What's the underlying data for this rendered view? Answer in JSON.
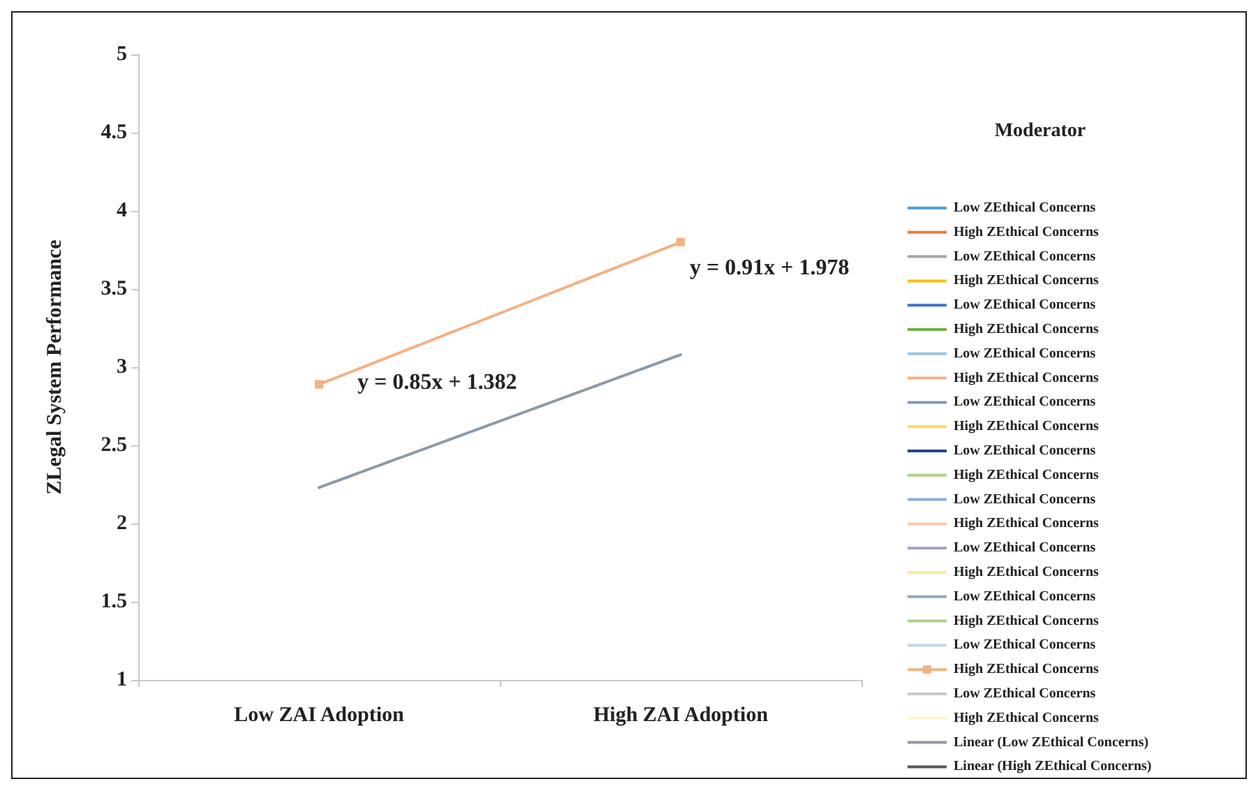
{
  "chart_data": {
    "type": "line",
    "ylabel": "ZLegal System Performance",
    "legend_title": "Moderator",
    "legend": "right",
    "grid": false,
    "categories": [
      "Low ZAI Adoption",
      "High ZAI Adoption"
    ],
    "ylim": [
      1,
      5
    ],
    "yticks": [
      1,
      1.5,
      2,
      2.5,
      3,
      3.5,
      4,
      4.5,
      5
    ],
    "annotations": [
      "y = 0.85x + 1.382",
      "y = 0.91x + 1.978"
    ],
    "series": [
      {
        "name": "Low ZEthical Concerns",
        "color": "#5b9bd5",
        "values": [
          null,
          null
        ]
      },
      {
        "name": "High ZEthical Concerns",
        "color": "#ed7d31",
        "values": [
          null,
          null
        ]
      },
      {
        "name": "Low ZEthical Concerns",
        "color": "#a5a5a5",
        "values": [
          null,
          null
        ]
      },
      {
        "name": "High ZEthical Concerns",
        "color": "#ffc000",
        "values": [
          null,
          null
        ]
      },
      {
        "name": "Low ZEthical Concerns",
        "color": "#4472c4",
        "values": [
          null,
          null
        ]
      },
      {
        "name": "High ZEthical Concerns",
        "color": "#70ad47",
        "values": [
          null,
          null
        ]
      },
      {
        "name": "Low ZEthical Concerns",
        "color": "#9dc3e6",
        "values": [
          null,
          null
        ]
      },
      {
        "name": "High ZEthical Concerns",
        "color": "#f4b183",
        "values": [
          null,
          null
        ]
      },
      {
        "name": "Low ZEthical Concerns",
        "color": "#8497b0",
        "values": [
          null,
          null
        ]
      },
      {
        "name": "High ZEthical Concerns",
        "color": "#ffd966",
        "values": [
          null,
          null
        ]
      },
      {
        "name": "Low ZEthical Concerns",
        "color": "#264478",
        "values": [
          null,
          null
        ]
      },
      {
        "name": "High ZEthical Concerns",
        "color": "#a9d18e",
        "values": [
          null,
          null
        ]
      },
      {
        "name": "Low ZEthical Concerns",
        "color": "#8faadc",
        "values": [
          null,
          null
        ]
      },
      {
        "name": "High ZEthical Concerns",
        "color": "#f8cbad",
        "values": [
          null,
          null
        ]
      },
      {
        "name": "Low ZEthical Concerns",
        "color": "#a99bc5",
        "values": [
          null,
          null
        ]
      },
      {
        "name": "High ZEthical Concerns",
        "color": "#ffe699",
        "values": [
          null,
          null
        ]
      },
      {
        "name": "Low ZEthical Concerns",
        "color": "#8ea9c1",
        "values": [
          null,
          null
        ]
      },
      {
        "name": "High ZEthical Concerns",
        "color": "#a8d08d",
        "values": [
          null,
          null
        ]
      },
      {
        "name": "Low ZEthical Concerns",
        "color": "#bdd7ee",
        "values": [
          null,
          null
        ]
      },
      {
        "name": "High ZEthical Concerns",
        "color": "#f4b183",
        "marker": "square",
        "values": [
          2.89,
          3.8
        ]
      },
      {
        "name": "Low ZEthical Concerns",
        "color": "#c9c9c9",
        "values": [
          null,
          null
        ]
      },
      {
        "name": "High ZEthical Concerns",
        "color": "#fff2cc",
        "values": [
          null,
          null
        ]
      },
      {
        "name": "Linear (Low ZEthical Concerns)",
        "color": "#8c9aa8",
        "values": [
          2.23,
          3.08
        ]
      },
      {
        "name": "Linear (High ZEthical Concerns)",
        "color": "#595959",
        "values": [
          null,
          null
        ]
      }
    ]
  }
}
